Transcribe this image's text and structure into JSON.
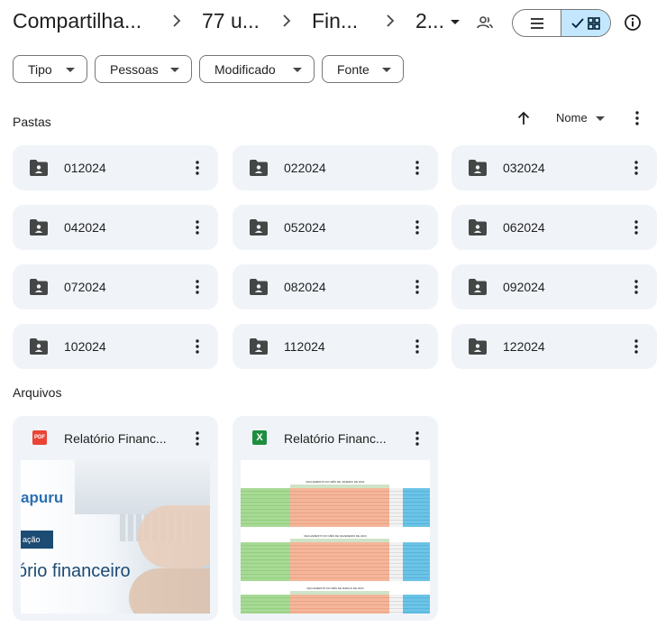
{
  "breadcrumb": [
    {
      "label": "Compartilha..."
    },
    {
      "label": "77 u..."
    },
    {
      "label": "Fin..."
    },
    {
      "label": "2..."
    }
  ],
  "filters": [
    {
      "label": "Tipo"
    },
    {
      "label": "Pessoas"
    },
    {
      "label": "Modificado"
    },
    {
      "label": "Fonte"
    }
  ],
  "sections": {
    "folders_title": "Pastas",
    "files_title": "Arquivos"
  },
  "sort": {
    "label": "Nome",
    "direction_icon": "arrow-up-icon"
  },
  "view_mode": "grid",
  "colors": {
    "accent": "#c2e7ff",
    "card_bg": "#f0f4f9",
    "pdf_red": "#ea4335",
    "sheets_green": "#1e8e3e"
  },
  "folders": [
    {
      "name": "012024"
    },
    {
      "name": "022024"
    },
    {
      "name": "032024"
    },
    {
      "name": "042024"
    },
    {
      "name": "052024"
    },
    {
      "name": "062024"
    },
    {
      "name": "072024"
    },
    {
      "name": "082024"
    },
    {
      "name": "092024"
    },
    {
      "name": "102024"
    },
    {
      "name": "112024"
    },
    {
      "name": "122024"
    }
  ],
  "files": [
    {
      "name": "Relatório Financ...",
      "type_icon": "pdf-icon",
      "type_label": "PDF",
      "thumb": {
        "logo_text": "apuru",
        "band_text": "ação",
        "big_text": "ório financeiro"
      }
    },
    {
      "name": "Relatório Financ...",
      "type_icon": "excel-icon",
      "type_label": "X",
      "thumb": {
        "sheet_titles": [
          "FECHAMENTO DO MÊS DE JANEIRO DE 2024",
          "FECHAMENTO DO MÊS DE FEVEREIRO DE 2024",
          "FECHAMENTO DO MÊS DE MARÇO DE 2024"
        ]
      }
    }
  ]
}
